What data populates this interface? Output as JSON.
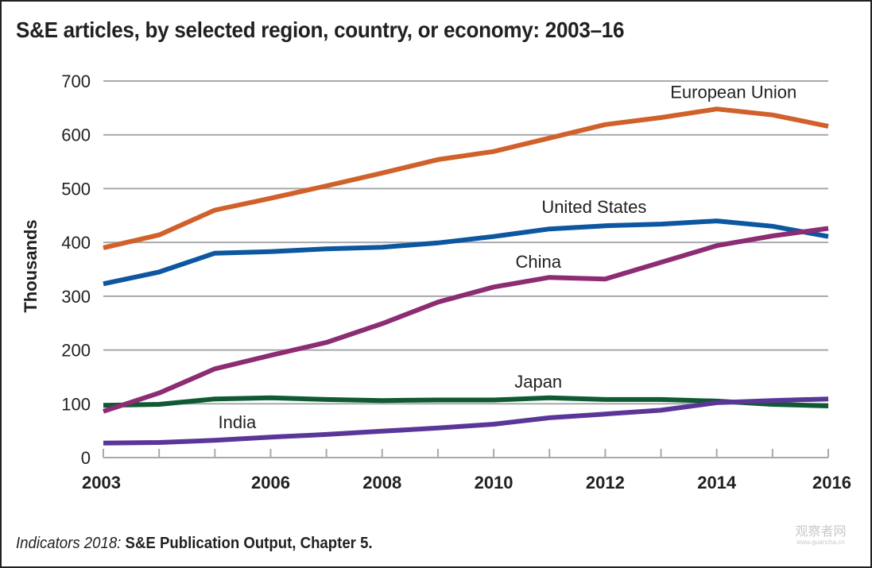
{
  "chart_data": {
    "type": "line",
    "title": "S&E articles, by selected region, country, or economy: 2003–16",
    "xlabel": "",
    "ylabel": "Thousands",
    "x": [
      2003,
      2004,
      2005,
      2006,
      2007,
      2008,
      2009,
      2010,
      2011,
      2012,
      2013,
      2014,
      2015,
      2016
    ],
    "xlim": [
      2003,
      2016
    ],
    "ylim": [
      0,
      700
    ],
    "x_tick_labels": [
      "2003",
      "2006",
      "2008",
      "2010",
      "2012",
      "2014",
      "2016"
    ],
    "x_tick_label_values": [
      2003,
      2006,
      2008,
      2010,
      2012,
      2014,
      2016
    ],
    "y_ticks": [
      0,
      100,
      200,
      300,
      400,
      500,
      600,
      700
    ],
    "y_tick_labels": [
      "0",
      "100",
      "200",
      "300",
      "400",
      "500",
      "600",
      "700"
    ],
    "grid": "horizontal",
    "legend": "inline labels",
    "series": [
      {
        "name": "European Union",
        "color": "#d0612a",
        "values": [
          390,
          414,
          460,
          482,
          505,
          529,
          554,
          569,
          594,
          619,
          632,
          648,
          637,
          616
        ],
        "label_anchor_year": 2014.3,
        "label_anchor_value": 668
      },
      {
        "name": "United States",
        "color": "#0d56a0",
        "values": [
          323,
          345,
          380,
          383,
          388,
          391,
          399,
          411,
          425,
          431,
          434,
          440,
          430,
          411
        ],
        "label_anchor_year": 2011.8,
        "label_anchor_value": 455
      },
      {
        "name": "China",
        "color": "#8c2c72",
        "values": [
          86,
          120,
          165,
          190,
          214,
          249,
          289,
          317,
          335,
          332,
          363,
          394,
          412,
          426
        ],
        "label_anchor_year": 2010.8,
        "label_anchor_value": 353
      },
      {
        "name": "Japan",
        "color": "#0f5a34",
        "values": [
          97,
          99,
          109,
          111,
          108,
          106,
          107,
          107,
          111,
          108,
          108,
          105,
          99,
          96
        ],
        "label_anchor_year": 2010.8,
        "label_anchor_value": 130
      },
      {
        "name": "India",
        "color": "#5b3699",
        "values": [
          27,
          28,
          32,
          38,
          43,
          49,
          55,
          62,
          74,
          81,
          88,
          102,
          106,
          109
        ],
        "label_anchor_year": 2005.4,
        "label_anchor_value": 55
      }
    ]
  },
  "footer": {
    "source_italic": "Indicators 2018:",
    "source_bold": "S&E Publication Output, Chapter 5."
  },
  "watermark": {
    "text": "观察者网",
    "sub": "www.guancha.cn"
  }
}
